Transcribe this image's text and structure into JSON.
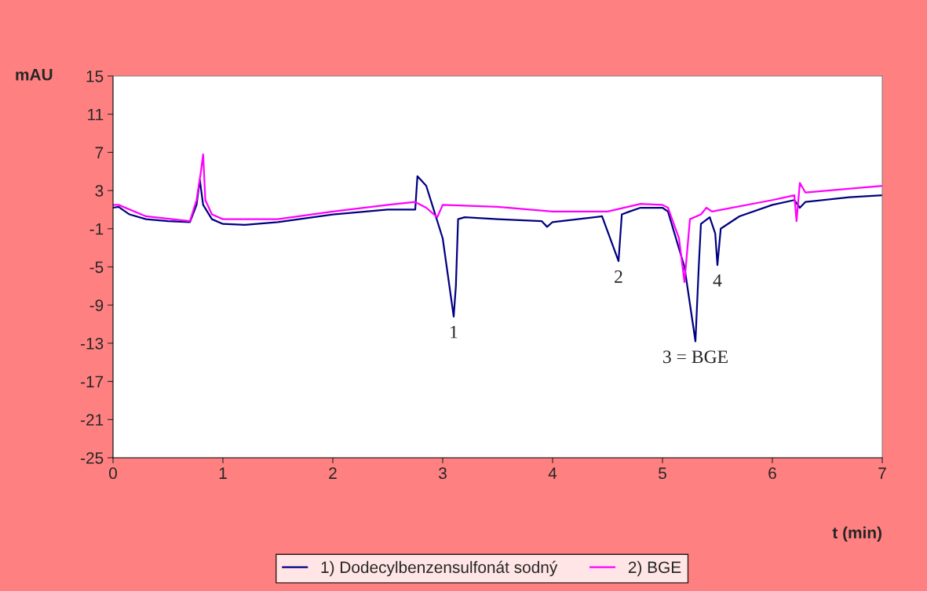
{
  "chart_data": {
    "type": "line",
    "xlabel": "t (min)",
    "ylabel": "mAU",
    "xlim": [
      0,
      7
    ],
    "xticks": [
      0,
      1,
      2,
      3,
      4,
      5,
      6,
      7
    ],
    "ylim": [
      -25,
      15
    ],
    "yticks": [
      -25,
      -21,
      -17,
      -13,
      -9,
      -5,
      -1,
      3,
      7,
      11,
      15
    ],
    "grid": false,
    "legend": "bottom",
    "marker": "none",
    "line_style": "solid",
    "series": [
      {
        "name": "1) Dodecylbenzensulfonát sodný",
        "color": "#000080",
        "x": [
          0,
          0.05,
          0.15,
          0.3,
          0.5,
          0.7,
          0.76,
          0.79,
          0.82,
          0.9,
          1.0,
          1.2,
          1.5,
          2.0,
          2.5,
          2.75,
          2.77,
          2.85,
          3.0,
          3.1,
          3.12,
          3.14,
          3.2,
          3.5,
          3.9,
          3.95,
          4.0,
          4.45,
          4.6,
          4.63,
          4.7,
          4.8,
          5.0,
          5.05,
          5.2,
          5.3,
          5.33,
          5.35,
          5.43,
          5.48,
          5.5,
          5.53,
          5.7,
          6.0,
          6.2,
          6.25,
          6.3,
          6.7,
          7.0
        ],
        "values": [
          1.2,
          1.3,
          0.5,
          0,
          -0.2,
          -0.3,
          1.5,
          4.1,
          1.5,
          0,
          -0.5,
          -0.6,
          -0.3,
          0.5,
          1.0,
          1.0,
          4.5,
          3.5,
          -2,
          -10.2,
          -7,
          0,
          0.2,
          0,
          -0.2,
          -0.8,
          -0.3,
          0.3,
          -4.4,
          0.5,
          0.8,
          1.2,
          1.2,
          0.8,
          -5,
          -12.8,
          -5,
          -0.5,
          0.2,
          -1.5,
          -4.8,
          -1.0,
          0.3,
          1.5,
          2.0,
          1.2,
          1.8,
          2.3,
          2.5
        ]
      },
      {
        "name": "2) BGE",
        "color": "#ff00ff",
        "x": [
          0,
          0.05,
          0.3,
          0.7,
          0.76,
          0.8,
          0.82,
          0.84,
          0.9,
          1.0,
          1.5,
          2.0,
          2.5,
          2.75,
          2.85,
          2.95,
          3.0,
          3.5,
          4.0,
          4.5,
          4.8,
          5.0,
          5.05,
          5.15,
          5.2,
          5.25,
          5.35,
          5.4,
          5.45,
          6.0,
          6.2,
          6.22,
          6.25,
          6.3,
          7.0
        ],
        "values": [
          1.5,
          1.5,
          0.3,
          -0.2,
          2,
          5,
          6.8,
          2,
          0.5,
          0,
          0,
          0.8,
          1.5,
          1.8,
          1.2,
          0.2,
          1.5,
          1.3,
          0.8,
          0.8,
          1.6,
          1.5,
          1.2,
          -2,
          -6.6,
          0,
          0.5,
          1.2,
          0.8,
          2.0,
          2.5,
          -0.2,
          3.8,
          2.8,
          3.5
        ]
      }
    ],
    "annotations": [
      {
        "text": "1",
        "x": 3.1,
        "y": -10.2
      },
      {
        "text": "2",
        "x": 4.6,
        "y": -4.4
      },
      {
        "text": "3 = BGE",
        "x": 5.3,
        "y": -12.8
      },
      {
        "text": "4",
        "x": 5.5,
        "y": -4.8
      }
    ]
  }
}
